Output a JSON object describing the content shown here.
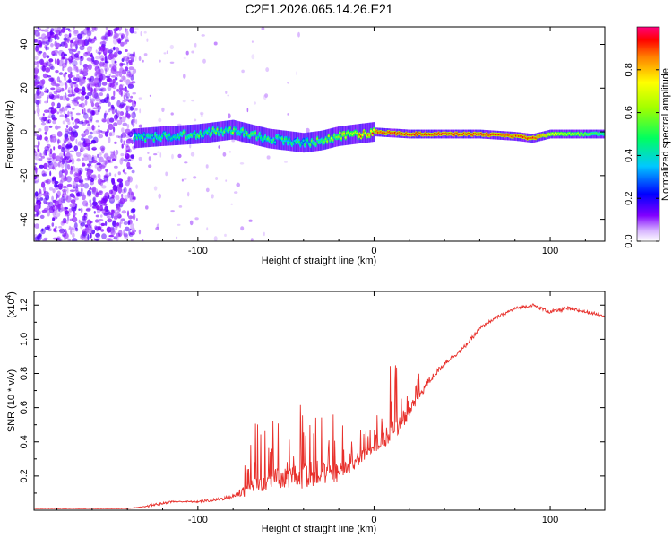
{
  "title": "C2E1.2026.065.14.26.E21",
  "chart_data": [
    {
      "type": "heatmap",
      "title": "C2E1.2026.065.14.26.E21",
      "xlabel": "Height of straight line (km)",
      "ylabel": "Frequency (Hz)",
      "xlim": [
        -193,
        131
      ],
      "ylim": [
        -50,
        48
      ],
      "xticks": [
        -100,
        0,
        100
      ],
      "xtick_labels": [
        "-100",
        "0",
        "100"
      ],
      "yticks": [
        40,
        20,
        0,
        -20,
        -40
      ],
      "ytick_labels": [
        "40",
        "20",
        "0",
        "-20",
        "-40"
      ],
      "noise_region_x": [
        -193,
        -136
      ],
      "signal_onset_x": -136,
      "ridge": {
        "x": [
          -136,
          -120,
          -100,
          -80,
          -60,
          -40,
          -30,
          -20,
          -10,
          0,
          20,
          60,
          80,
          90,
          100,
          131
        ],
        "freq": [
          -3,
          -2,
          -1,
          1,
          -3,
          -5,
          -4,
          -2,
          -1,
          0,
          -1,
          -1,
          -2,
          -3,
          -1,
          -1
        ],
        "amplitude": [
          0.5,
          0.55,
          0.55,
          0.6,
          0.55,
          0.5,
          0.6,
          0.75,
          0.85,
          0.95,
          1.0,
          1.0,
          0.95,
          1.0,
          0.8,
          0.55
        ]
      },
      "colorbar": {
        "label": "Normalized spectral amplitude",
        "range": [
          0.0,
          1.0
        ],
        "ticks": [
          0.0,
          0.2,
          0.4,
          0.6,
          0.8
        ],
        "tick_labels": [
          "0.0",
          "0.2",
          "0.4",
          "0.6",
          "0.8"
        ],
        "colormap": "rainbow (magenta-blue-cyan-green-yellow-red)"
      }
    },
    {
      "type": "line",
      "xlabel": "Height of straight line (km)",
      "ylabel": "SNR (10 * v/v)",
      "scale_label_base": "(x10",
      "scale_label_exp": "4",
      "scale_label_end": ")",
      "xlim": [
        -193,
        131
      ],
      "ylim": [
        0.0,
        1.28
      ],
      "xticks": [
        -100,
        0,
        100
      ],
      "xtick_labels": [
        "-100",
        "0",
        "100"
      ],
      "yticks": [
        0.2,
        0.4,
        0.6,
        0.8,
        1.0,
        1.2
      ],
      "ytick_labels": [
        "0.2",
        "0.4",
        "0.6",
        "0.8",
        "1.0",
        "1.2"
      ],
      "series": [
        {
          "name": "SNR",
          "color": "#e8312c",
          "x": [
            -193,
            -140,
            -130,
            -126,
            -120,
            -115,
            -110,
            -100,
            -90,
            -80,
            -70,
            -60,
            -50,
            -40,
            -30,
            -20,
            -15,
            -10,
            -5,
            0,
            5,
            10,
            15,
            20,
            25,
            30,
            35,
            40,
            45,
            50,
            55,
            60,
            65,
            70,
            80,
            90,
            100,
            110,
            120,
            131
          ],
          "base": [
            0.01,
            0.01,
            0.02,
            0.03,
            0.04,
            0.05,
            0.05,
            0.05,
            0.06,
            0.08,
            0.14,
            0.18,
            0.19,
            0.2,
            0.22,
            0.22,
            0.24,
            0.28,
            0.33,
            0.36,
            0.4,
            0.46,
            0.52,
            0.58,
            0.66,
            0.74,
            0.8,
            0.86,
            0.9,
            0.94,
            1.0,
            1.06,
            1.1,
            1.13,
            1.18,
            1.2,
            1.16,
            1.18,
            1.16,
            1.14
          ],
          "spread": [
            0.005,
            0.005,
            0.01,
            0.03,
            0.02,
            0.02,
            0.01,
            0.02,
            0.03,
            0.04,
            0.2,
            0.2,
            0.2,
            0.25,
            0.25,
            0.2,
            0.12,
            0.1,
            0.1,
            0.1,
            0.16,
            0.25,
            0.18,
            0.15,
            0.1,
            0.08,
            0.06,
            0.05,
            0.04,
            0.04,
            0.04,
            0.04,
            0.03,
            0.03,
            0.03,
            0.03,
            0.04,
            0.04,
            0.03,
            0.03
          ]
        }
      ]
    }
  ]
}
